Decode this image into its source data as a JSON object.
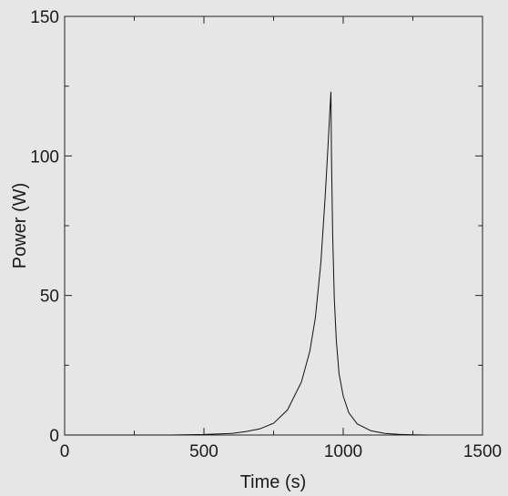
{
  "chart_data": {
    "type": "line",
    "title": "",
    "xlabel": "Time (s)",
    "ylabel": "Power (W)",
    "xlim": [
      0,
      1500
    ],
    "ylim": [
      0,
      150
    ],
    "xticks": [
      0,
      500,
      1000,
      1500
    ],
    "yticks": [
      0,
      50,
      100,
      150
    ],
    "xtick_labels": [
      "0",
      "500",
      "1000",
      "1500"
    ],
    "ytick_labels": [
      "0",
      "50",
      "100",
      "150"
    ],
    "grid": false,
    "legend": "none",
    "series": [
      {
        "color": "#111111",
        "x": [
          0,
          380,
          500,
          600,
          650,
          700,
          750,
          800,
          850,
          880,
          900,
          920,
          935,
          945,
          952,
          956,
          958,
          962,
          968,
          975,
          985,
          1000,
          1020,
          1050,
          1100,
          1150,
          1200,
          1250,
          1300
        ],
        "y": [
          0,
          0,
          0.2,
          0.6,
          1.2,
          2.2,
          4.2,
          9,
          19,
          30,
          42,
          62,
          85,
          103,
          116,
          123,
          100,
          72,
          49,
          34,
          22,
          14,
          8,
          4,
          1.5,
          0.6,
          0.25,
          0.1,
          0
        ]
      }
    ]
  }
}
